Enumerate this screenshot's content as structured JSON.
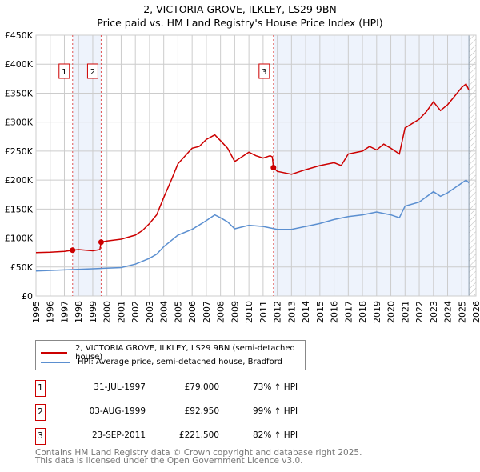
{
  "chart_data": {
    "type": "line",
    "title": "2, VICTORIA GROVE, ILKLEY, LS29 9BN",
    "subtitle": "Price paid vs. HM Land Registry's House Price Index (HPI)",
    "xlim": [
      1995,
      2026
    ],
    "ylim": [
      0,
      450000
    ],
    "x_ticks": [
      "1995",
      "1996",
      "1997",
      "1998",
      "1999",
      "2000",
      "2001",
      "2002",
      "2003",
      "2004",
      "2005",
      "2006",
      "2007",
      "2008",
      "2009",
      "2010",
      "2011",
      "2012",
      "2013",
      "2014",
      "2015",
      "2016",
      "2017",
      "2018",
      "2019",
      "2020",
      "2021",
      "2022",
      "2023",
      "2024",
      "2025",
      "2026"
    ],
    "y_ticks": [
      "£0",
      "£50K",
      "£100K",
      "£150K",
      "£200K",
      "£250K",
      "£300K",
      "£350K",
      "£400K",
      "£450K"
    ],
    "grid": true,
    "series": [
      {
        "name": "2, VICTORIA GROVE, ILKLEY, LS29 9BN (semi-detached house)",
        "color": "#cc0000",
        "x": [
          1995,
          1996,
          1997,
          1997.58,
          1998,
          1999,
          1999.5,
          1999.59,
          2000,
          2001,
          2002,
          2002.5,
          2003,
          2003.5,
          2004,
          2004.5,
          2005,
          2006,
          2006.5,
          2007,
          2007.6,
          2008,
          2008.5,
          2009,
          2009.5,
          2010,
          2010.5,
          2011,
          2011.5,
          2011.65,
          2011.73,
          2012,
          2013,
          2014,
          2015,
          2016,
          2016.5,
          2017,
          2018,
          2018.5,
          2019,
          2019.5,
          2020,
          2020.6,
          2021,
          2022,
          2022.5,
          2023,
          2023.5,
          2024,
          2024.5,
          2025,
          2025.3,
          2025.5
        ],
        "values": [
          75000,
          75500,
          77000,
          79000,
          80000,
          78000,
          80000,
          92950,
          95000,
          98000,
          105000,
          113000,
          125000,
          140000,
          170000,
          198000,
          228000,
          255000,
          258000,
          270000,
          278000,
          268000,
          255000,
          232000,
          240000,
          248000,
          242000,
          238000,
          242000,
          240000,
          221500,
          215000,
          210000,
          218000,
          225000,
          230000,
          225000,
          245000,
          250000,
          258000,
          252000,
          262000,
          255000,
          245000,
          290000,
          305000,
          318000,
          335000,
          320000,
          330000,
          345000,
          360000,
          366000,
          355000
        ]
      },
      {
        "name": "HPI: Average price, semi-detached house, Bradford",
        "color": "#5b8fd0",
        "x": [
          1995,
          1997,
          1999,
          2001,
          2002,
          2003,
          2003.5,
          2004,
          2004.5,
          2005,
          2006,
          2007,
          2007.6,
          2008,
          2008.5,
          2009,
          2010,
          2011,
          2012,
          2013,
          2014,
          2015,
          2016,
          2017,
          2018,
          2019,
          2020,
          2020.6,
          2021,
          2022,
          2023,
          2023.5,
          2024,
          2025,
          2025.3,
          2025.5
        ],
        "values": [
          43000,
          45000,
          47000,
          49000,
          55000,
          65000,
          72000,
          85000,
          95000,
          105000,
          115000,
          130000,
          140000,
          135000,
          128000,
          116000,
          122000,
          120000,
          115000,
          115000,
          120000,
          125000,
          132000,
          137000,
          140000,
          145000,
          140000,
          135000,
          155000,
          162000,
          180000,
          172000,
          178000,
          195000,
          200000,
          195000
        ]
      }
    ],
    "sales": [
      {
        "label": "1",
        "x": 1997.58,
        "value": 79000
      },
      {
        "label": "2",
        "x": 1999.59,
        "value": 92950
      },
      {
        "label": "3",
        "x": 2011.73,
        "value": 221500
      }
    ],
    "legend_position": "below"
  },
  "legend": {
    "red": "2, VICTORIA GROVE, ILKLEY, LS29 9BN (semi-detached house)",
    "blue": "HPI: Average price, semi-detached house, Bradford"
  },
  "table": [
    {
      "n": "1",
      "date": "31-JUL-1997",
      "price": "£79,000",
      "hpi": "73% ↑ HPI"
    },
    {
      "n": "2",
      "date": "03-AUG-1999",
      "price": "£92,950",
      "hpi": "99% ↑ HPI"
    },
    {
      "n": "3",
      "date": "23-SEP-2011",
      "price": "£221,500",
      "hpi": "82% ↑ HPI"
    }
  ],
  "footer": [
    "Contains HM Land Registry data © Crown copyright and database right 2025.",
    "This data is licensed under the Open Government Licence v3.0."
  ]
}
